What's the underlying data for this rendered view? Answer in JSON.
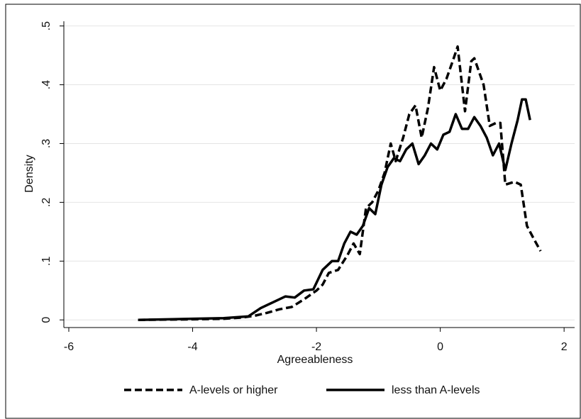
{
  "chart_data": {
    "type": "line",
    "x_label": "Agreeableness",
    "y_label": "Density",
    "xlim": [
      -6.08,
      2.17
    ],
    "ylim": [
      -0.013,
      0.508
    ],
    "xticks": [
      -6,
      -4,
      -2,
      0,
      2
    ],
    "yticks": [
      {
        "value": 0,
        "label": "0"
      },
      {
        "value": 0.1,
        "label": ".1"
      },
      {
        "value": 0.2,
        "label": ".2"
      },
      {
        "value": 0.3,
        "label": ".3"
      },
      {
        "value": 0.4,
        "label": ".4"
      },
      {
        "value": 0.5,
        "label": ".5"
      }
    ],
    "grid": true,
    "legend": "bottom",
    "series": [
      {
        "name": "A-levels or higher",
        "color": "#000000",
        "dash": true,
        "x": [
          -4.88,
          -4,
          -3.5,
          -3.2,
          -3.0,
          -2.8,
          -2.6,
          -2.4,
          -2.2,
          -2.0,
          -1.9,
          -1.8,
          -1.65,
          -1.5,
          -1.4,
          -1.3,
          -1.2,
          -1.1,
          -1.0,
          -0.9,
          -0.8,
          -0.72,
          -0.6,
          -0.5,
          -0.4,
          -0.3,
          -0.2,
          -0.1,
          0.0,
          0.1,
          0.2,
          0.28,
          0.4,
          0.5,
          0.55,
          0.7,
          0.8,
          0.9,
          0.97,
          1.05,
          1.2,
          1.3,
          1.4,
          1.5,
          1.62
        ],
        "values": [
          0,
          0.001,
          0.002,
          0.004,
          0.007,
          0.012,
          0.018,
          0.022,
          0.035,
          0.05,
          0.06,
          0.08,
          0.085,
          0.11,
          0.13,
          0.112,
          0.19,
          0.2,
          0.22,
          0.25,
          0.3,
          0.27,
          0.31,
          0.35,
          0.365,
          0.31,
          0.36,
          0.43,
          0.39,
          0.41,
          0.44,
          0.465,
          0.355,
          0.44,
          0.445,
          0.4,
          0.33,
          0.335,
          0.335,
          0.23,
          0.235,
          0.23,
          0.16,
          0.14,
          0.117
        ]
      },
      {
        "name": "less than A-levels",
        "color": "#000000",
        "dash": false,
        "x": [
          -4.88,
          -4,
          -3.5,
          -3.1,
          -2.9,
          -2.7,
          -2.5,
          -2.35,
          -2.2,
          -2.05,
          -1.9,
          -1.75,
          -1.65,
          -1.55,
          -1.45,
          -1.35,
          -1.25,
          -1.15,
          -1.05,
          -0.95,
          -0.85,
          -0.75,
          -0.65,
          -0.55,
          -0.45,
          -0.35,
          -0.25,
          -0.15,
          -0.05,
          0.05,
          0.15,
          0.25,
          0.35,
          0.45,
          0.55,
          0.65,
          0.75,
          0.85,
          0.95,
          1.05,
          1.15,
          1.25,
          1.32,
          1.38,
          1.45
        ],
        "values": [
          0,
          0.002,
          0.003,
          0.006,
          0.02,
          0.03,
          0.04,
          0.038,
          0.05,
          0.052,
          0.085,
          0.1,
          0.1,
          0.13,
          0.15,
          0.145,
          0.16,
          0.19,
          0.18,
          0.23,
          0.26,
          0.275,
          0.27,
          0.29,
          0.3,
          0.265,
          0.28,
          0.3,
          0.29,
          0.315,
          0.32,
          0.35,
          0.325,
          0.325,
          0.345,
          0.33,
          0.31,
          0.28,
          0.3,
          0.255,
          0.3,
          0.34,
          0.375,
          0.375,
          0.34
        ]
      }
    ]
  }
}
